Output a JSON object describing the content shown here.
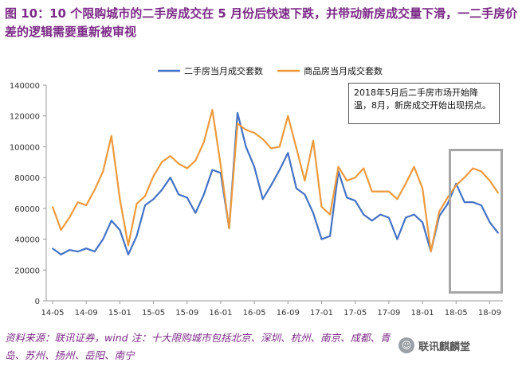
{
  "title": "图 10：10 个限购城市的二手房成交在 5 月份后快速下跌，并带动新房成交量下滑，一二手房价差的逻辑需要重新被审视",
  "source_note": "资料来源：联讯证券，wind 注：十大限购城市包括北京、深圳、杭州、南京、成都、青岛、苏州、扬州、岳阳、南宁",
  "watermark": "联讯麒麟堂",
  "annotation": "2018年5月后二手房市场开始降温，8月，新房成交开始出现拐点。",
  "colors": {
    "series1": "#4472c4",
    "series2": "#ed9a3d",
    "highlight": "#a6a6a6",
    "title": "#7b2a86"
  },
  "chart_data": {
    "type": "line",
    "legend_position": "top",
    "grid": false,
    "ylim": [
      0,
      140000
    ],
    "yticks": [
      0,
      20000,
      40000,
      60000,
      80000,
      100000,
      120000,
      140000
    ],
    "xticks": [
      "14-05",
      "14-09",
      "15-01",
      "15-05",
      "15-09",
      "16-01",
      "16-05",
      "16-09",
      "17-01",
      "17-05",
      "17-09",
      "18-01",
      "18-05",
      "18-09"
    ],
    "x": [
      "14-05",
      "14-06",
      "14-07",
      "14-08",
      "14-09",
      "14-10",
      "14-11",
      "14-12",
      "15-01",
      "15-02",
      "15-03",
      "15-04",
      "15-05",
      "15-06",
      "15-07",
      "15-08",
      "15-09",
      "15-10",
      "15-11",
      "15-12",
      "16-01",
      "16-02",
      "16-03",
      "16-04",
      "16-05",
      "16-06",
      "16-07",
      "16-08",
      "16-09",
      "16-10",
      "16-11",
      "16-12",
      "17-01",
      "17-02",
      "17-03",
      "17-04",
      "17-05",
      "17-06",
      "17-07",
      "17-08",
      "17-09",
      "17-10",
      "17-11",
      "17-12",
      "18-01",
      "18-02",
      "18-03",
      "18-04",
      "18-05",
      "18-06",
      "18-07",
      "18-08",
      "18-09",
      "18-10"
    ],
    "series": [
      {
        "name": "二手房当月成交套数",
        "values": [
          34000,
          30000,
          33000,
          32000,
          34000,
          32000,
          40000,
          52000,
          46000,
          30000,
          42000,
          62000,
          66000,
          72000,
          80000,
          69000,
          67000,
          57000,
          69000,
          85000,
          83000,
          47000,
          122000,
          100000,
          87000,
          66000,
          75000,
          85000,
          96000,
          73000,
          69000,
          57000,
          40000,
          42000,
          84000,
          67000,
          65000,
          56000,
          52000,
          56000,
          54000,
          40000,
          54000,
          56000,
          51000,
          32000,
          55000,
          63000,
          76000,
          64000,
          64000,
          62000,
          51000,
          44000
        ]
      },
      {
        "name": "商品房当月成交套数",
        "values": [
          61000,
          46000,
          54000,
          64000,
          62000,
          72000,
          84000,
          107000,
          66000,
          36000,
          63000,
          68000,
          81000,
          90000,
          94000,
          89000,
          86000,
          91000,
          103000,
          124000,
          88000,
          47000,
          115000,
          111000,
          109000,
          105000,
          99000,
          100000,
          120000,
          99000,
          78000,
          104000,
          61000,
          56000,
          87000,
          78000,
          80000,
          86000,
          71000,
          71000,
          71000,
          66000,
          76000,
          87000,
          73000,
          32000,
          58000,
          67000,
          75000,
          80000,
          86000,
          84000,
          78000,
          70000
        ]
      }
    ]
  }
}
